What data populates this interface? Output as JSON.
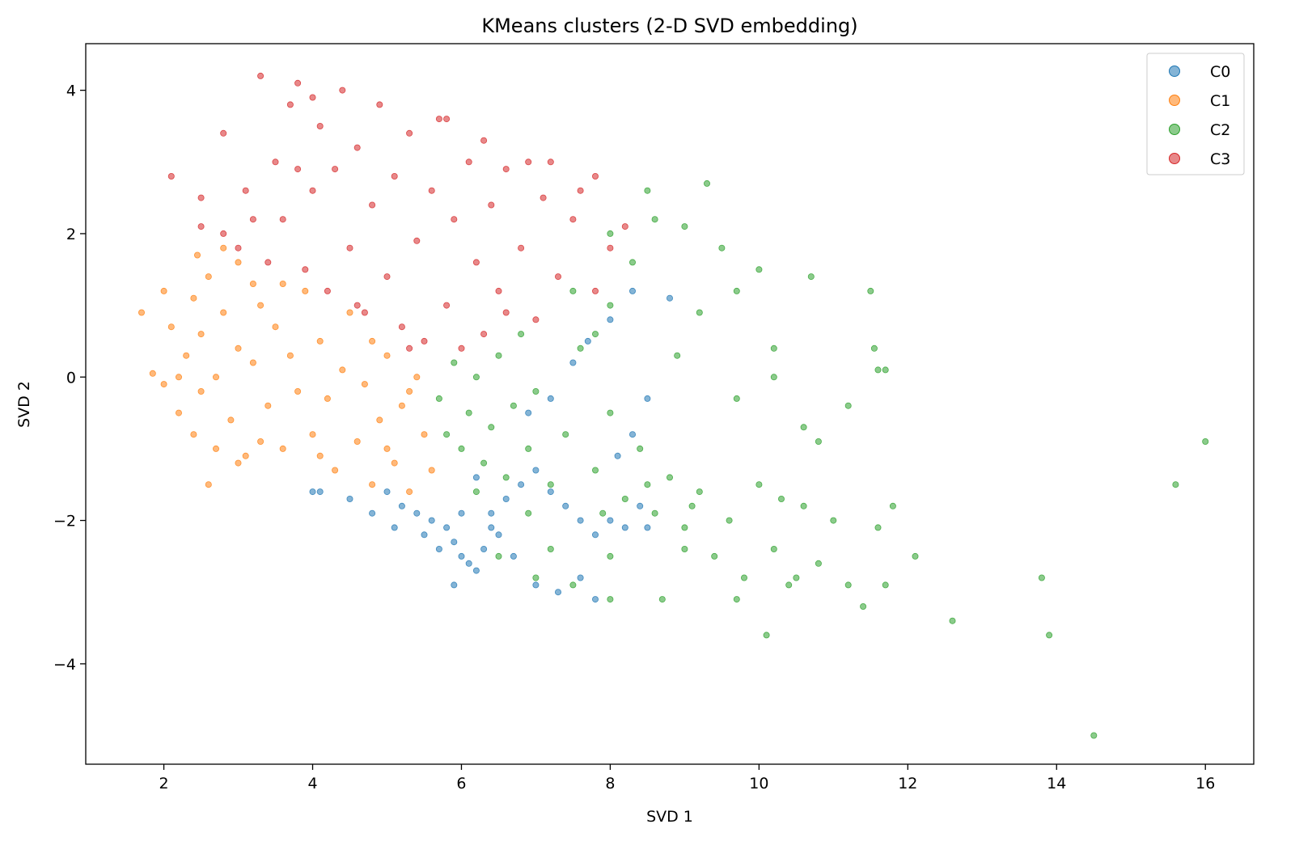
{
  "chart_data": {
    "type": "scatter",
    "title": "KMeans clusters (2-D SVD embedding)",
    "xlabel": "SVD 1",
    "ylabel": "SVD 2",
    "xlim": [
      0.95,
      16.65
    ],
    "ylim": [
      -5.4,
      4.65
    ],
    "x_ticks": [
      2,
      4,
      6,
      8,
      10,
      12,
      14,
      16
    ],
    "x_tick_labels": [
      "2",
      "4",
      "6",
      "8",
      "10",
      "12",
      "14",
      "16"
    ],
    "y_ticks": [
      4,
      2,
      0,
      -2,
      -4
    ],
    "y_tick_labels": [
      "4",
      "2",
      "0",
      "−2",
      "−4"
    ],
    "grid": false,
    "legend": "top-right",
    "series": [
      {
        "name": "C0",
        "color": "#1f77b4",
        "points": [
          [
            5.0,
            -1.6
          ],
          [
            5.2,
            -1.8
          ],
          [
            5.4,
            -1.9
          ],
          [
            5.6,
            -2.0
          ],
          [
            5.8,
            -2.1
          ],
          [
            5.9,
            -2.3
          ],
          [
            6.0,
            -2.5
          ],
          [
            6.1,
            -2.6
          ],
          [
            6.2,
            -2.7
          ],
          [
            5.9,
            -2.9
          ],
          [
            6.3,
            -2.4
          ],
          [
            6.5,
            -2.2
          ],
          [
            6.4,
            -1.9
          ],
          [
            6.6,
            -1.7
          ],
          [
            6.8,
            -1.5
          ],
          [
            7.0,
            -1.3
          ],
          [
            7.2,
            -1.6
          ],
          [
            7.4,
            -1.8
          ],
          [
            7.6,
            -2.0
          ],
          [
            7.8,
            -2.2
          ],
          [
            8.0,
            -2.0
          ],
          [
            8.2,
            -2.1
          ],
          [
            8.4,
            -1.8
          ],
          [
            8.5,
            -2.1
          ],
          [
            7.6,
            -2.8
          ],
          [
            7.8,
            -3.1
          ],
          [
            7.3,
            -3.0
          ],
          [
            6.7,
            -2.5
          ],
          [
            7.0,
            -2.9
          ],
          [
            4.0,
            -1.6
          ],
          [
            4.1,
            -1.6
          ],
          [
            4.5,
            -1.7
          ],
          [
            4.8,
            -1.9
          ],
          [
            5.1,
            -2.1
          ],
          [
            5.5,
            -2.2
          ],
          [
            6.9,
            -0.5
          ],
          [
            7.2,
            -0.3
          ],
          [
            7.5,
            0.2
          ],
          [
            7.7,
            0.5
          ],
          [
            8.0,
            0.8
          ],
          [
            8.3,
            1.2
          ],
          [
            8.8,
            1.1
          ],
          [
            8.5,
            -0.3
          ],
          [
            8.3,
            -0.8
          ],
          [
            8.1,
            -1.1
          ],
          [
            6.2,
            -1.4
          ],
          [
            6.4,
            -2.1
          ],
          [
            5.7,
            -2.4
          ],
          [
            6.0,
            -1.9
          ]
        ]
      },
      {
        "name": "C1",
        "color": "#ff7f0e",
        "points": [
          [
            1.7,
            0.9
          ],
          [
            1.85,
            0.05
          ],
          [
            2.0,
            -0.1
          ],
          [
            2.0,
            1.2
          ],
          [
            2.1,
            0.7
          ],
          [
            2.2,
            -0.5
          ],
          [
            2.3,
            0.3
          ],
          [
            2.4,
            1.1
          ],
          [
            2.4,
            -0.8
          ],
          [
            2.5,
            0.6
          ],
          [
            2.5,
            -0.2
          ],
          [
            2.6,
            1.4
          ],
          [
            2.7,
            -1.0
          ],
          [
            2.7,
            0.0
          ],
          [
            2.8,
            0.9
          ],
          [
            2.9,
            -0.6
          ],
          [
            3.0,
            0.4
          ],
          [
            3.0,
            1.6
          ],
          [
            3.1,
            -1.1
          ],
          [
            3.2,
            0.2
          ],
          [
            3.3,
            1.0
          ],
          [
            3.4,
            -0.4
          ],
          [
            3.5,
            0.7
          ],
          [
            3.6,
            -1.0
          ],
          [
            3.7,
            0.3
          ],
          [
            3.8,
            -0.2
          ],
          [
            3.9,
            1.2
          ],
          [
            4.0,
            -0.8
          ],
          [
            4.1,
            0.5
          ],
          [
            4.2,
            -0.3
          ],
          [
            4.3,
            -1.3
          ],
          [
            4.4,
            0.1
          ],
          [
            4.5,
            0.9
          ],
          [
            4.6,
            -0.9
          ],
          [
            4.7,
            -0.1
          ],
          [
            4.8,
            -1.5
          ],
          [
            4.9,
            -0.6
          ],
          [
            5.0,
            0.3
          ],
          [
            5.1,
            -1.2
          ],
          [
            5.2,
            -0.4
          ],
          [
            5.3,
            -1.6
          ],
          [
            5.4,
            0.0
          ],
          [
            5.5,
            -0.8
          ],
          [
            5.6,
            -1.3
          ],
          [
            3.0,
            -1.2
          ],
          [
            2.6,
            -1.5
          ],
          [
            2.8,
            1.8
          ],
          [
            3.6,
            1.3
          ],
          [
            4.8,
            0.5
          ],
          [
            5.3,
            -0.2
          ],
          [
            2.2,
            0.0
          ],
          [
            3.3,
            -0.9
          ],
          [
            4.1,
            -1.1
          ],
          [
            5.0,
            -1.0
          ],
          [
            2.45,
            1.7
          ],
          [
            3.2,
            1.3
          ]
        ]
      },
      {
        "name": "C2",
        "color": "#2ca02c",
        "points": [
          [
            5.7,
            -0.3
          ],
          [
            5.8,
            -0.8
          ],
          [
            5.9,
            0.2
          ],
          [
            6.0,
            -1.0
          ],
          [
            6.1,
            -0.5
          ],
          [
            6.2,
            0.0
          ],
          [
            6.3,
            -1.2
          ],
          [
            6.4,
            -0.7
          ],
          [
            6.5,
            0.3
          ],
          [
            6.6,
            -1.4
          ],
          [
            6.7,
            -0.4
          ],
          [
            6.8,
            0.6
          ],
          [
            6.9,
            -1.0
          ],
          [
            7.0,
            -0.2
          ],
          [
            7.2,
            -1.5
          ],
          [
            7.4,
            -0.8
          ],
          [
            7.6,
            0.4
          ],
          [
            7.8,
            -1.3
          ],
          [
            8.0,
            -0.5
          ],
          [
            8.2,
            -1.7
          ],
          [
            8.4,
            -1.0
          ],
          [
            8.6,
            -1.9
          ],
          [
            8.8,
            -1.4
          ],
          [
            9.0,
            -2.1
          ],
          [
            9.2,
            -1.6
          ],
          [
            9.4,
            -2.5
          ],
          [
            9.6,
            -2.0
          ],
          [
            9.8,
            -2.8
          ],
          [
            10.0,
            -1.5
          ],
          [
            10.2,
            -2.4
          ],
          [
            10.4,
            -2.9
          ],
          [
            10.6,
            -1.8
          ],
          [
            10.8,
            -2.6
          ],
          [
            11.0,
            -2.0
          ],
          [
            11.2,
            -2.9
          ],
          [
            11.4,
            -3.2
          ],
          [
            11.6,
            -2.1
          ],
          [
            11.8,
            -1.8
          ],
          [
            12.1,
            -2.5
          ],
          [
            12.6,
            -3.4
          ],
          [
            13.8,
            -2.8
          ],
          [
            13.9,
            -3.6
          ],
          [
            14.5,
            -5.0
          ],
          [
            15.6,
            -1.5
          ],
          [
            16.0,
            -0.9
          ],
          [
            10.1,
            -3.6
          ],
          [
            11.5,
            1.2
          ],
          [
            11.6,
            0.1
          ],
          [
            11.7,
            0.1
          ],
          [
            11.55,
            0.4
          ],
          [
            11.2,
            -0.4
          ],
          [
            9.3,
            2.7
          ],
          [
            8.5,
            2.6
          ],
          [
            9.0,
            2.1
          ],
          [
            8.0,
            2.0
          ],
          [
            8.6,
            2.2
          ],
          [
            9.5,
            1.8
          ],
          [
            10.0,
            1.5
          ],
          [
            10.7,
            1.4
          ],
          [
            9.7,
            1.2
          ],
          [
            10.2,
            0.4
          ],
          [
            9.2,
            0.9
          ],
          [
            8.9,
            0.3
          ],
          [
            10.2,
            0.0
          ],
          [
            10.6,
            -0.7
          ],
          [
            10.8,
            -0.9
          ],
          [
            9.7,
            -0.3
          ],
          [
            8.0,
            1.0
          ],
          [
            7.8,
            0.6
          ],
          [
            7.5,
            1.2
          ],
          [
            8.3,
            1.6
          ],
          [
            9.7,
            -3.1
          ],
          [
            8.7,
            -3.1
          ],
          [
            8.0,
            -3.1
          ],
          [
            7.5,
            -2.9
          ],
          [
            7.0,
            -2.8
          ],
          [
            6.5,
            -2.5
          ],
          [
            7.2,
            -2.4
          ],
          [
            8.0,
            -2.5
          ],
          [
            9.0,
            -2.4
          ],
          [
            10.5,
            -2.8
          ],
          [
            11.7,
            -2.9
          ],
          [
            10.3,
            -1.7
          ],
          [
            9.1,
            -1.8
          ],
          [
            8.5,
            -1.5
          ],
          [
            7.9,
            -1.9
          ],
          [
            6.9,
            -1.9
          ],
          [
            6.2,
            -1.6
          ]
        ]
      },
      {
        "name": "C3",
        "color": "#d62728",
        "points": [
          [
            2.1,
            2.8
          ],
          [
            2.5,
            2.5
          ],
          [
            2.5,
            2.1
          ],
          [
            2.8,
            3.4
          ],
          [
            2.8,
            2.0
          ],
          [
            3.0,
            1.8
          ],
          [
            3.1,
            2.6
          ],
          [
            3.3,
            4.2
          ],
          [
            3.4,
            1.6
          ],
          [
            3.5,
            3.0
          ],
          [
            3.6,
            2.2
          ],
          [
            3.7,
            3.8
          ],
          [
            3.8,
            4.1
          ],
          [
            3.9,
            1.5
          ],
          [
            4.0,
            2.6
          ],
          [
            4.1,
            3.5
          ],
          [
            4.2,
            1.2
          ],
          [
            4.3,
            2.9
          ],
          [
            4.4,
            4.0
          ],
          [
            4.5,
            1.8
          ],
          [
            4.6,
            3.2
          ],
          [
            4.7,
            0.9
          ],
          [
            4.8,
            2.4
          ],
          [
            4.9,
            3.8
          ],
          [
            5.0,
            1.4
          ],
          [
            5.1,
            2.8
          ],
          [
            5.2,
            0.7
          ],
          [
            5.3,
            3.4
          ],
          [
            5.4,
            1.9
          ],
          [
            5.5,
            0.5
          ],
          [
            5.6,
            2.6
          ],
          [
            5.7,
            3.6
          ],
          [
            5.8,
            1.0
          ],
          [
            5.9,
            2.2
          ],
          [
            6.0,
            0.4
          ],
          [
            6.1,
            3.0
          ],
          [
            6.2,
            1.6
          ],
          [
            6.3,
            0.6
          ],
          [
            6.4,
            2.4
          ],
          [
            6.5,
            1.2
          ],
          [
            6.6,
            2.9
          ],
          [
            6.8,
            1.8
          ],
          [
            7.0,
            0.8
          ],
          [
            7.1,
            2.5
          ],
          [
            7.3,
            1.4
          ],
          [
            7.5,
            2.2
          ],
          [
            7.6,
            2.6
          ],
          [
            7.8,
            2.8
          ],
          [
            8.0,
            1.8
          ],
          [
            8.2,
            2.1
          ],
          [
            6.9,
            3.0
          ],
          [
            7.2,
            3.0
          ],
          [
            6.3,
            3.3
          ],
          [
            5.8,
            3.6
          ],
          [
            4.0,
            3.9
          ],
          [
            3.2,
            2.2
          ],
          [
            3.8,
            2.9
          ],
          [
            4.6,
            1.0
          ],
          [
            5.3,
            0.4
          ],
          [
            6.6,
            0.9
          ],
          [
            7.8,
            1.2
          ]
        ]
      }
    ]
  }
}
